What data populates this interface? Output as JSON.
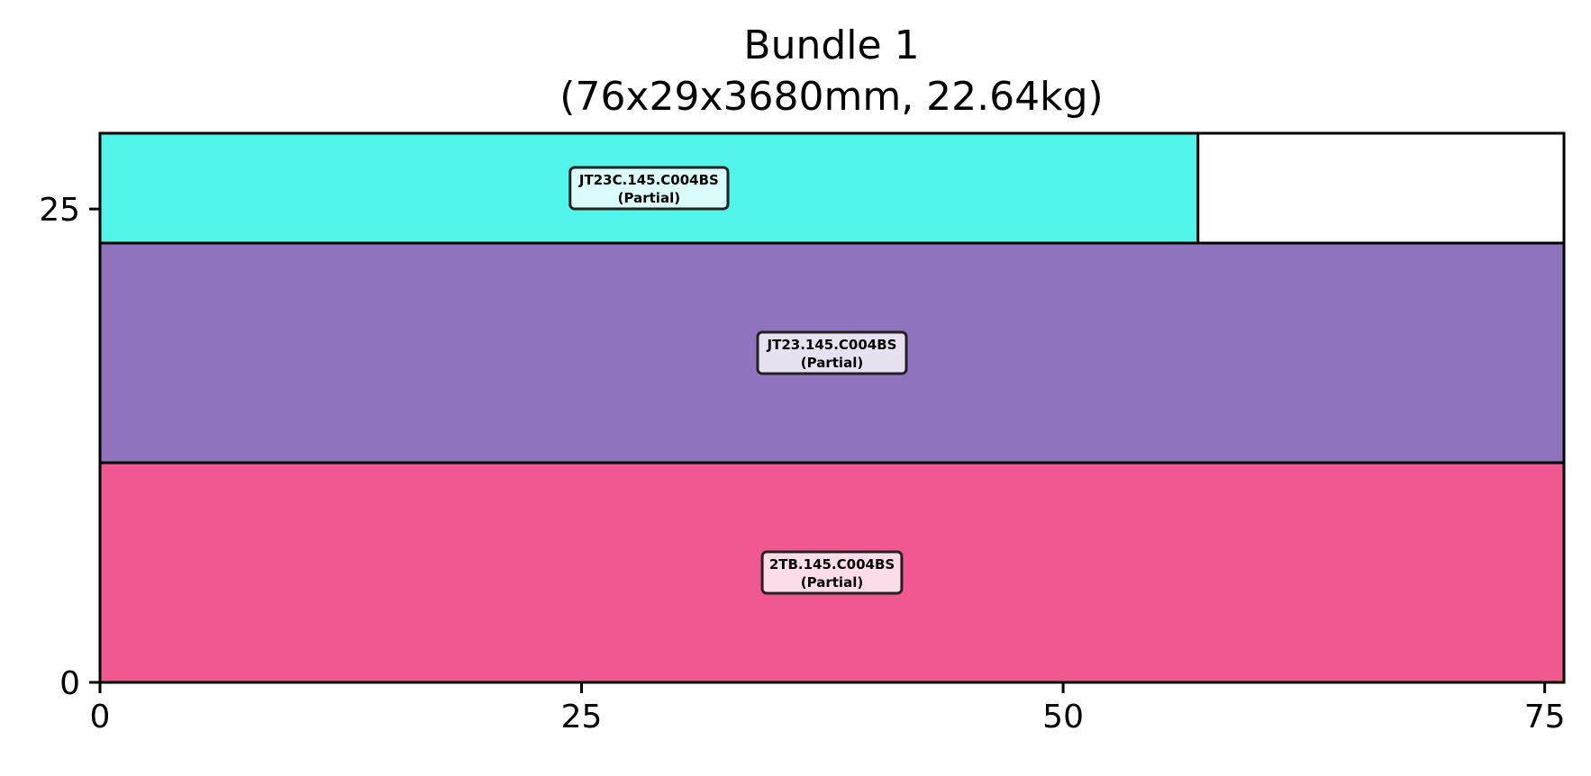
{
  "chart_data": {
    "type": "bar",
    "title": "Bundle 1",
    "subtitle": "(76x29x3680mm, 22.64kg)",
    "xlabel": "",
    "ylabel": "",
    "xlim": [
      0,
      76
    ],
    "ylim": [
      0,
      29
    ],
    "x_ticks": [
      "0",
      "25",
      "50",
      "75"
    ],
    "y_ticks": [
      "0",
      "25"
    ],
    "grid": false,
    "legend": "none",
    "blocks": [
      {
        "label": "2TB.145.C004BS",
        "status": "(Partial)",
        "x": 0,
        "y": 0,
        "width": 76,
        "height": 11.6,
        "color": "#f05891",
        "label_bg": "#fbdce8"
      },
      {
        "label": "JT23.145.C004BS",
        "status": "(Partial)",
        "x": 0,
        "y": 11.6,
        "width": 76,
        "height": 11.6,
        "color": "#8f73bf",
        "label_bg": "#e8e1f2"
      },
      {
        "label": "JT23C.145.C004BS",
        "status": "(Partial)",
        "x": 0,
        "y": 23.2,
        "width": 57,
        "height": 5.8,
        "color": "#52f5e9",
        "label_bg": "#dafdfb"
      }
    ]
  }
}
